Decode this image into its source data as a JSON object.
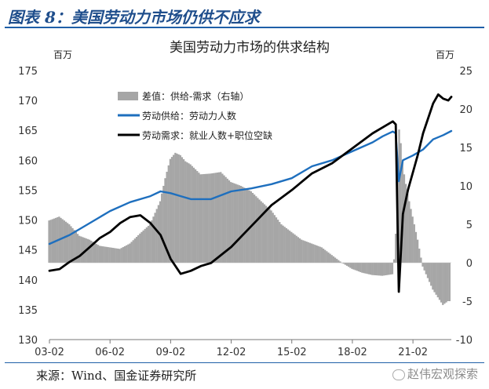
{
  "heading": "图表 8：美国劳动力市场仍供不应求",
  "source": "来源：Wind、国金证券研究所",
  "watermark": "赵伟宏观探索",
  "chart_data": {
    "type": "line",
    "title": "美国劳动力市场的供求结构",
    "left_unit": "百万",
    "right_unit": "百万",
    "left_ylim": [
      130,
      175
    ],
    "left_ticks": [
      130,
      135,
      140,
      145,
      150,
      155,
      160,
      165,
      170,
      175
    ],
    "right_ylim": [
      -10,
      25
    ],
    "right_ticks": [
      -10,
      -5,
      0,
      5,
      10,
      15,
      20,
      25
    ],
    "x_ticks": [
      "03-02",
      "06-02",
      "09-02",
      "12-02",
      "15-02",
      "18-02",
      "21-02"
    ],
    "x_tick_years": [
      2003,
      2006,
      2009,
      2012,
      2015,
      2018,
      2021
    ],
    "x_start": 2003.0,
    "x_end": 2022.9,
    "colors": {
      "gap": "#a6a6a6",
      "supply": "#1e6fbe",
      "demand": "#000000"
    },
    "series": [
      {
        "name": "差值：供给-需求（右轴）",
        "axis": "right",
        "style": "bar",
        "x": [
          2003.0,
          2003.5,
          2004.0,
          2004.5,
          2005.0,
          2005.5,
          2006.0,
          2006.5,
          2007.0,
          2007.5,
          2008.0,
          2008.5,
          2008.75,
          2009.0,
          2009.25,
          2009.5,
          2009.75,
          2010.0,
          2010.5,
          2011.0,
          2011.5,
          2012.0,
          2012.5,
          2013.0,
          2013.5,
          2014.0,
          2014.5,
          2015.0,
          2015.5,
          2016.0,
          2016.5,
          2017.0,
          2017.5,
          2018.0,
          2018.5,
          2019.0,
          2019.5,
          2020.0,
          2020.15,
          2020.3,
          2020.4,
          2020.55,
          2020.75,
          2021.0,
          2021.25,
          2021.5,
          2021.75,
          2022.0,
          2022.25,
          2022.5,
          2022.75
        ],
        "values": [
          5.5,
          6.0,
          5.0,
          3.5,
          3.0,
          2.2,
          2.0,
          1.8,
          2.5,
          3.8,
          5.0,
          8.0,
          11.0,
          13.5,
          14.3,
          14.0,
          13.2,
          12.8,
          11.5,
          11.6,
          11.8,
          10.5,
          10.0,
          9.3,
          8.0,
          6.8,
          5.0,
          4.0,
          3.0,
          2.5,
          2.0,
          1.0,
          0.0,
          -0.8,
          -1.3,
          -1.6,
          -1.7,
          -1.5,
          2.0,
          18.0,
          16.0,
          12.0,
          9.0,
          6.0,
          3.0,
          -0.5,
          -2.0,
          -3.5,
          -4.5,
          -5.5,
          -5.0
        ]
      },
      {
        "name": "劳动供给：劳动力人数",
        "axis": "left",
        "style": "line",
        "x": [
          2003.0,
          2004.0,
          2005.0,
          2006.0,
          2007.0,
          2008.0,
          2008.5,
          2009.0,
          2009.5,
          2010.0,
          2011.0,
          2012.0,
          2013.0,
          2014.0,
          2015.0,
          2016.0,
          2017.0,
          2018.0,
          2019.0,
          2019.5,
          2020.0,
          2020.15,
          2020.3,
          2020.5,
          2021.0,
          2021.5,
          2022.0,
          2022.5,
          2022.9
        ],
        "values": [
          146.0,
          147.5,
          149.5,
          151.5,
          153.0,
          154.0,
          154.8,
          154.5,
          154.0,
          153.5,
          153.5,
          154.8,
          155.3,
          156.0,
          157.0,
          159.0,
          160.0,
          161.5,
          163.0,
          164.0,
          164.8,
          164.5,
          156.5,
          160.0,
          160.8,
          161.8,
          163.5,
          164.2,
          164.9
        ]
      },
      {
        "name": "劳动需求：就业人数+职位空缺",
        "axis": "left",
        "style": "line",
        "x": [
          2003.0,
          2003.5,
          2004.0,
          2004.5,
          2005.0,
          2005.5,
          2006.0,
          2006.5,
          2007.0,
          2007.5,
          2008.0,
          2008.5,
          2009.0,
          2009.5,
          2010.0,
          2010.5,
          2011.0,
          2012.0,
          2013.0,
          2014.0,
          2015.0,
          2016.0,
          2017.0,
          2018.0,
          2019.0,
          2019.5,
          2020.0,
          2020.15,
          2020.3,
          2020.5,
          2020.75,
          2021.0,
          2021.25,
          2021.5,
          2021.75,
          2022.0,
          2022.25,
          2022.5,
          2022.75,
          2022.9
        ],
        "values": [
          141.5,
          141.8,
          143.0,
          144.0,
          145.5,
          147.0,
          148.0,
          149.5,
          150.5,
          150.8,
          149.5,
          147.5,
          143.5,
          141.0,
          141.5,
          142.3,
          142.8,
          145.5,
          149.0,
          152.5,
          155.0,
          157.8,
          159.5,
          162.0,
          164.5,
          165.5,
          166.5,
          166.0,
          138.0,
          151.0,
          155.0,
          158.0,
          161.0,
          164.5,
          167.0,
          169.5,
          171.0,
          170.3,
          170.0,
          170.6
        ]
      }
    ]
  }
}
